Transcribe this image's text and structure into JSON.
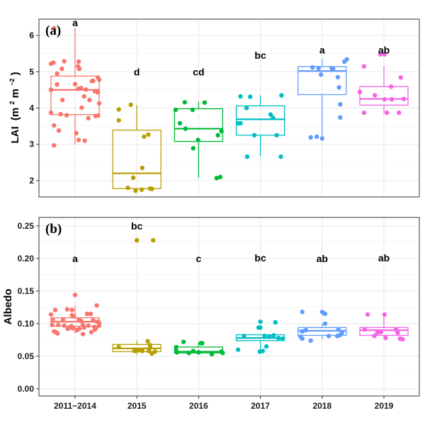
{
  "chart_data": [
    {
      "type": "box",
      "panel_label": "(a)",
      "title": "",
      "xlabel": "",
      "ylabel": "LAI (m² m⁻²)",
      "ylabel_parts": {
        "main": "LAI",
        "unit_open": "(m",
        "sup1": "2",
        "mid": " m",
        "sup2": "−2",
        "unit_close": ")"
      },
      "ylim": [
        1.55,
        6.45
      ],
      "yticks": [
        2,
        3,
        4,
        5,
        6
      ],
      "ytick_labels": [
        "2",
        "3",
        "4",
        "5",
        "6"
      ],
      "grid": true,
      "categories": [
        "2011−2014",
        "2015",
        "2016",
        "2017",
        "2018",
        "2019"
      ],
      "colors": [
        "#F8766D",
        "#B79F00",
        "#00BA38",
        "#00BFC4",
        "#619CFF",
        "#F564E3"
      ],
      "significance_letters": [
        "a",
        "d",
        "cd",
        "bc",
        "a",
        "ab"
      ],
      "letter_y": [
        6.35,
        5.0,
        5.0,
        5.45,
        5.6,
        5.6
      ],
      "boxes": [
        {
          "q1": 3.82,
          "median": 4.5,
          "q3": 4.88,
          "whisker_low": 3.0,
          "whisker_high": 6.2
        },
        {
          "q1": 1.78,
          "median": 2.2,
          "q3": 3.39,
          "whisker_low": 1.73,
          "whisker_high": 4.08
        },
        {
          "q1": 3.08,
          "median": 3.43,
          "q3": 3.98,
          "whisker_low": 2.08,
          "whisker_high": 4.18
        },
        {
          "q1": 3.25,
          "median": 3.69,
          "q3": 4.06,
          "whisker_low": 2.67,
          "whisker_high": 4.35
        },
        {
          "q1": 4.37,
          "median": 5.02,
          "q3": 5.14,
          "whisker_low": 3.18,
          "whisker_high": 5.35
        },
        {
          "q1": 4.08,
          "median": 4.25,
          "q3": 4.59,
          "whisker_low": 3.86,
          "whisker_high": 5.16
        }
      ],
      "points": [
        [
          [
            -0.35,
            6.2
          ],
          [
            -0.4,
            5.22
          ],
          [
            -0.36,
            5.25
          ],
          [
            -0.18,
            5.29
          ],
          [
            0.06,
            5.28
          ],
          [
            0.05,
            5.15
          ],
          [
            0.07,
            5.08
          ],
          [
            -0.22,
            5.08
          ],
          [
            -0.3,
            4.95
          ],
          [
            -0.3,
            4.65
          ],
          [
            -0.4,
            4.5
          ],
          [
            0.0,
            4.66
          ],
          [
            0.05,
            4.53
          ],
          [
            0.1,
            4.55
          ],
          [
            0.18,
            4.51
          ],
          [
            0.3,
            4.75
          ],
          [
            0.28,
            4.74
          ],
          [
            0.38,
            4.84
          ],
          [
            0.4,
            4.78
          ],
          [
            -0.21,
            4.22
          ],
          [
            0.15,
            4.32
          ],
          [
            0.24,
            4.22
          ],
          [
            0.11,
            4.01
          ],
          [
            0.33,
            4.46
          ],
          [
            0.38,
            4.43
          ],
          [
            0.4,
            4.13
          ],
          [
            -0.4,
            3.87
          ],
          [
            -0.24,
            3.83
          ],
          [
            -0.14,
            3.8
          ],
          [
            0.22,
            3.72
          ],
          [
            0.34,
            3.78
          ],
          [
            0.38,
            3.79
          ],
          [
            -0.35,
            3.52
          ],
          [
            -0.27,
            3.38
          ],
          [
            0.02,
            3.31
          ],
          [
            0.06,
            3.12
          ],
          [
            0.16,
            3.1
          ],
          [
            -0.35,
            2.97
          ]
        ],
        [
          [
            -0.3,
            3.96
          ],
          [
            -0.3,
            3.66
          ],
          [
            -0.1,
            4.09
          ],
          [
            0.12,
            3.21
          ],
          [
            0.19,
            3.27
          ],
          [
            0.09,
            2.35
          ],
          [
            -0.06,
            2.08
          ],
          [
            -0.15,
            1.8
          ],
          [
            0.08,
            1.75
          ],
          [
            0.22,
            1.78
          ],
          [
            0.25,
            1.77
          ],
          [
            -0.02,
            1.72
          ]
        ],
        [
          [
            -0.23,
            4.16
          ],
          [
            0.1,
            4.15
          ],
          [
            -0.38,
            3.95
          ],
          [
            -0.1,
            3.95
          ],
          [
            -0.31,
            3.58
          ],
          [
            -0.22,
            3.43
          ],
          [
            0.38,
            3.36
          ],
          [
            0.32,
            3.25
          ],
          [
            -0.01,
            3.12
          ],
          [
            -0.09,
            2.89
          ],
          [
            0.3,
            2.07
          ],
          [
            0.36,
            2.1
          ]
        ],
        [
          [
            -0.33,
            4.32
          ],
          [
            -0.17,
            4.31
          ],
          [
            0.35,
            4.35
          ],
          [
            -0.23,
            4.0
          ],
          [
            0.17,
            3.82
          ],
          [
            0.21,
            3.73
          ],
          [
            -0.37,
            3.58
          ],
          [
            -0.33,
            3.58
          ],
          [
            -0.1,
            3.25
          ],
          [
            0.27,
            3.25
          ],
          [
            -0.22,
            2.66
          ],
          [
            0.34,
            2.66
          ]
        ],
        [
          [
            -0.16,
            5.12
          ],
          [
            -0.06,
            5.1
          ],
          [
            0.16,
            5.1
          ],
          [
            0.18,
            5.08
          ],
          [
            -0.02,
            4.92
          ],
          [
            0.26,
            4.85
          ],
          [
            0.37,
            5.28
          ],
          [
            0.41,
            5.34
          ],
          [
            0.28,
            4.57
          ],
          [
            0.3,
            4.1
          ],
          [
            -0.19,
            3.19
          ],
          [
            -0.09,
            3.21
          ],
          [
            0.0,
            3.16
          ],
          [
            0.3,
            3.74
          ]
        ],
        [
          [
            -0.06,
            5.48
          ],
          [
            0.01,
            5.48
          ],
          [
            -0.33,
            5.15
          ],
          [
            0.28,
            4.84
          ],
          [
            -0.4,
            4.44
          ],
          [
            0.12,
            4.59
          ],
          [
            -0.15,
            4.35
          ],
          [
            0.01,
            4.24
          ],
          [
            0.13,
            4.24
          ],
          [
            0.33,
            4.25
          ],
          [
            -0.33,
            3.87
          ],
          [
            0.05,
            3.87
          ],
          [
            0.25,
            3.87
          ]
        ]
      ]
    },
    {
      "type": "box",
      "panel_label": "(b)",
      "title": "",
      "xlabel": "",
      "ylabel": "Albedo",
      "ylim": [
        -0.011,
        0.263
      ],
      "yticks": [
        0.0,
        0.05,
        0.1,
        0.15,
        0.2,
        0.25
      ],
      "ytick_labels": [
        "0.00",
        "0.05",
        "0.10",
        "0.15",
        "0.20",
        "0.25"
      ],
      "grid": true,
      "categories": [
        "2011−2014",
        "2015",
        "2016",
        "2017",
        "2018",
        "2019"
      ],
      "x_tick_labels": [
        "2011−2014",
        "2015",
        "2016",
        "2017",
        "2018",
        "2019"
      ],
      "colors": [
        "#F8766D",
        "#B79F00",
        "#00BA38",
        "#00BFC4",
        "#619CFF",
        "#F564E3"
      ],
      "significance_letters": [
        "a",
        "bc",
        "c",
        "bc",
        "ab",
        "ab"
      ],
      "letter_y": [
        0.2,
        0.25,
        0.2,
        0.201,
        0.2,
        0.201
      ],
      "boxes": [
        {
          "q1": 0.096,
          "median": 0.103,
          "q3": 0.109,
          "whisker_low": 0.085,
          "whisker_high": 0.128
        },
        {
          "q1": 0.057,
          "median": 0.062,
          "q3": 0.068,
          "whisker_low": 0.052,
          "whisker_high": 0.074
        },
        {
          "q1": 0.055,
          "median": 0.057,
          "q3": 0.064,
          "whisker_low": 0.053,
          "whisker_high": 0.072
        },
        {
          "q1": 0.074,
          "median": 0.078,
          "q3": 0.083,
          "whisker_low": 0.06,
          "whisker_high": 0.083
        },
        {
          "q1": 0.082,
          "median": 0.089,
          "q3": 0.094,
          "whisker_low": 0.076,
          "whisker_high": 0.1
        },
        {
          "q1": 0.082,
          "median": 0.09,
          "q3": 0.094,
          "whisker_low": 0.077,
          "whisker_high": 0.113
        }
      ],
      "points": [
        [
          [
            0.0,
            0.144
          ],
          [
            0.36,
            0.128
          ],
          [
            -0.33,
            0.121
          ],
          [
            -0.13,
            0.122
          ],
          [
            -0.05,
            0.121
          ],
          [
            -0.4,
            0.114
          ],
          [
            0.2,
            0.115
          ],
          [
            0.26,
            0.115
          ],
          [
            -0.05,
            0.113
          ],
          [
            -0.02,
            0.111
          ],
          [
            -0.37,
            0.106
          ],
          [
            -0.2,
            0.106
          ],
          [
            0.06,
            0.106
          ],
          [
            0.1,
            0.104
          ],
          [
            0.3,
            0.105
          ],
          [
            0.37,
            0.103
          ],
          [
            0.4,
            0.101
          ],
          [
            -0.38,
            0.098
          ],
          [
            -0.28,
            0.098
          ],
          [
            -0.18,
            0.097
          ],
          [
            -0.06,
            0.096
          ],
          [
            0.13,
            0.098
          ],
          [
            0.22,
            0.097
          ],
          [
            0.32,
            0.095
          ],
          [
            0.4,
            0.097
          ],
          [
            -0.1,
            0.094
          ],
          [
            -0.04,
            0.093
          ],
          [
            0.07,
            0.092
          ],
          [
            0.35,
            0.094
          ],
          [
            -0.35,
            0.088
          ],
          [
            -0.32,
            0.087
          ],
          [
            -0.29,
            0.085
          ],
          [
            0.03,
            0.09
          ],
          [
            0.13,
            0.084
          ],
          [
            0.27,
            0.087
          ],
          [
            0.33,
            0.091
          ],
          [
            0.15,
            0.094
          ],
          [
            -0.12,
            0.092
          ]
        ],
        [
          [
            0.0,
            0.228
          ],
          [
            0.27,
            0.228
          ],
          [
            -0.3,
            0.064
          ],
          [
            -0.03,
            0.06
          ],
          [
            0.02,
            0.059
          ],
          [
            0.09,
            0.058
          ],
          [
            0.18,
            0.073
          ],
          [
            0.22,
            0.067
          ],
          [
            0.22,
            0.063
          ],
          [
            0.2,
            0.058
          ],
          [
            0.25,
            0.054
          ],
          [
            0.3,
            0.057
          ],
          [
            -0.04,
            0.058
          ]
        ],
        [
          [
            -0.25,
            0.072
          ],
          [
            0.04,
            0.07
          ],
          [
            0.06,
            0.07
          ],
          [
            -0.37,
            0.064
          ],
          [
            -0.37,
            0.058
          ],
          [
            -0.36,
            0.056
          ],
          [
            -0.16,
            0.055
          ],
          [
            -0.09,
            0.058
          ],
          [
            0.0,
            0.056
          ],
          [
            0.22,
            0.053
          ],
          [
            0.38,
            0.057
          ],
          [
            0.4,
            0.055
          ]
        ],
        [
          [
            0.0,
            0.103
          ],
          [
            -0.03,
            0.094
          ],
          [
            0.0,
            0.094
          ],
          [
            0.25,
            0.102
          ],
          [
            -0.27,
            0.081
          ],
          [
            0.07,
            0.081
          ],
          [
            0.22,
            0.082
          ],
          [
            0.15,
            0.08
          ],
          [
            0.3,
            0.078
          ],
          [
            0.37,
            0.077
          ],
          [
            -0.37,
            0.06
          ],
          [
            0.1,
            0.065
          ],
          [
            -0.01,
            0.057
          ],
          [
            0.04,
            0.058
          ]
        ],
        [
          [
            -0.33,
            0.118
          ],
          [
            0.0,
            0.118
          ],
          [
            0.03,
            0.116
          ],
          [
            0.05,
            0.115
          ],
          [
            0.05,
            0.1
          ],
          [
            -0.33,
            0.088
          ],
          [
            -0.27,
            0.09
          ],
          [
            0.27,
            0.091
          ],
          [
            0.33,
            0.086
          ],
          [
            -0.36,
            0.08
          ],
          [
            -0.33,
            0.077
          ],
          [
            -0.19,
            0.074
          ],
          [
            0.11,
            0.081
          ],
          [
            0.25,
            0.081
          ],
          [
            0.29,
            0.082
          ]
        ],
        [
          [
            -0.27,
            0.114
          ],
          [
            0.01,
            0.114
          ],
          [
            -0.32,
            0.091
          ],
          [
            -0.11,
            0.086
          ],
          [
            -0.16,
            0.081
          ],
          [
            0.2,
            0.091
          ],
          [
            0.23,
            0.086
          ],
          [
            0.03,
            0.078
          ],
          [
            0.27,
            0.077
          ],
          [
            0.31,
            0.076
          ],
          [
            -0.05,
            0.087
          ]
        ]
      ]
    }
  ]
}
